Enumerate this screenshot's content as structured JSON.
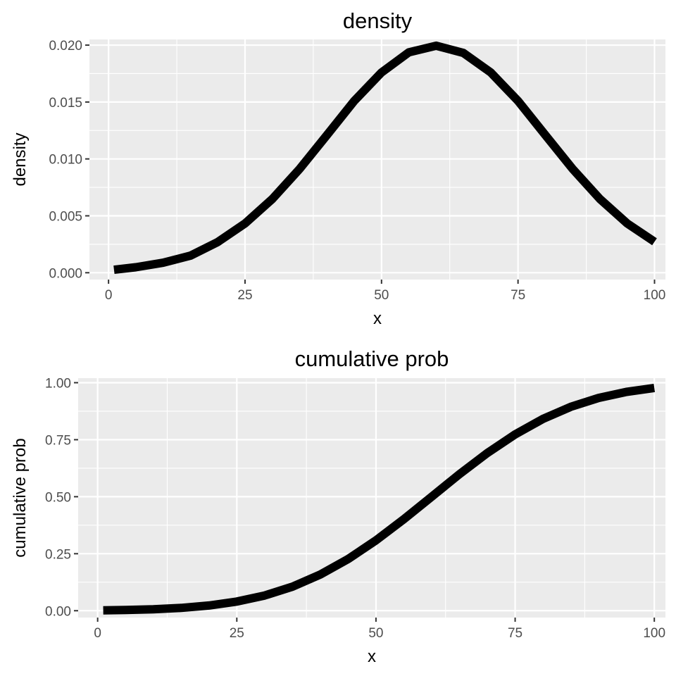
{
  "chart_data": [
    {
      "type": "line",
      "title": "density",
      "xlabel": "x",
      "ylabel": "density",
      "xlim": [
        -3.5,
        102
      ],
      "ylim": [
        -0.0006,
        0.0205
      ],
      "x_ticks": [
        0,
        25,
        50,
        75,
        100
      ],
      "x_tick_labels": [
        "0",
        "25",
        "50",
        "75",
        "100"
      ],
      "y_ticks": [
        0,
        0.005,
        0.01,
        0.015,
        0.02
      ],
      "y_tick_labels": [
        "0.000",
        "0.005",
        "0.010",
        "0.015",
        "0.020"
      ],
      "grid": true,
      "series": [
        {
          "x": [
            1,
            5,
            10,
            15,
            20,
            25,
            30,
            35,
            40,
            45,
            50,
            55,
            60,
            65,
            70,
            75,
            80,
            85,
            90,
            95,
            100
          ],
          "y": [
            0.00026,
            0.00048,
            0.00088,
            0.0015,
            0.0027,
            0.00433,
            0.00648,
            0.00912,
            0.0121,
            0.01509,
            0.0176,
            0.01937,
            0.01995,
            0.01931,
            0.0176,
            0.01509,
            0.0121,
            0.00912,
            0.00648,
            0.00433,
            0.00272
          ]
        }
      ]
    },
    {
      "type": "line",
      "title": "cumulative prob",
      "xlabel": "x",
      "ylabel": "cumulative prob",
      "xlim": [
        -3.5,
        102
      ],
      "ylim": [
        -0.03,
        1.02
      ],
      "x_ticks": [
        0,
        25,
        50,
        75,
        100
      ],
      "x_tick_labels": [
        "0",
        "25",
        "50",
        "75",
        "100"
      ],
      "y_ticks": [
        0,
        0.25,
        0.5,
        0.75,
        1
      ],
      "y_tick_labels": [
        "0.00",
        "0.25",
        "0.50",
        "0.75",
        "1.00"
      ],
      "grid": true,
      "series": [
        {
          "x": [
            1,
            5,
            10,
            15,
            20,
            25,
            30,
            35,
            40,
            45,
            50,
            55,
            60,
            65,
            70,
            75,
            80,
            85,
            90,
            95,
            100
          ],
          "y": [
            0.0016,
            0.003,
            0.0062,
            0.0122,
            0.0228,
            0.0401,
            0.0668,
            0.1056,
            0.1587,
            0.2266,
            0.3085,
            0.4013,
            0.5,
            0.5987,
            0.6915,
            0.7734,
            0.8413,
            0.8944,
            0.9332,
            0.9599,
            0.9772
          ]
        }
      ]
    }
  ]
}
